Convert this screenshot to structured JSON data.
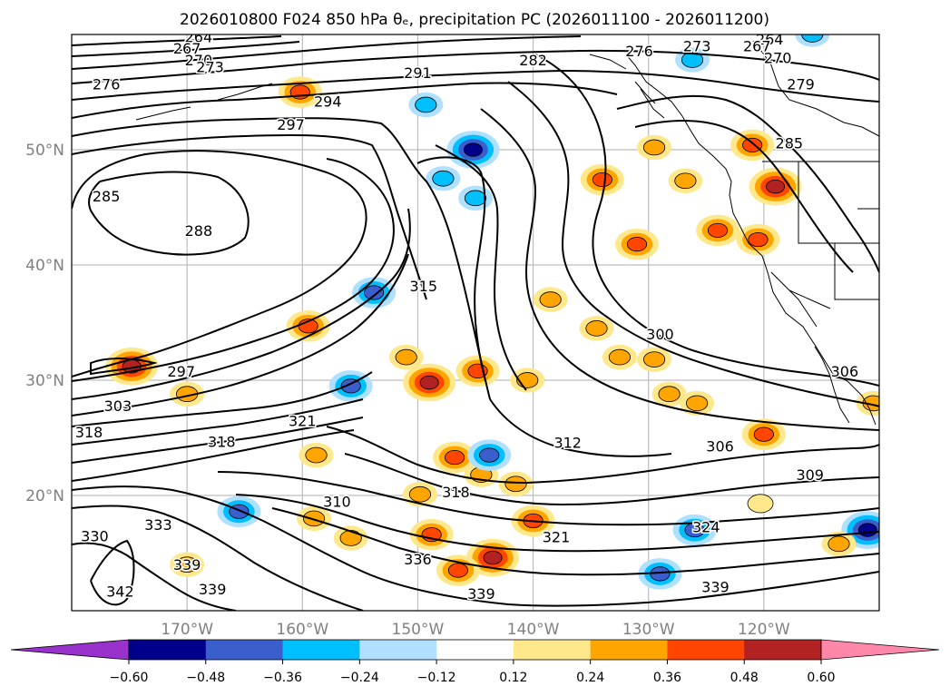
{
  "chart_data": {
    "type": "contour_map",
    "title": "2026010800 F024 850 hPa θₑ, precipitation PC (2026011100 - 2026011200)",
    "xlim": [
      -180,
      -110
    ],
    "ylim": [
      10,
      60
    ],
    "x_ticks": [
      -170,
      -160,
      -150,
      -140,
      -130,
      -120
    ],
    "x_tick_labels": [
      "170°W",
      "160°W",
      "150°W",
      "140°W",
      "130°W",
      "120°W"
    ],
    "y_ticks": [
      20,
      30,
      40,
      50
    ],
    "y_tick_labels": [
      "20°N",
      "30°N",
      "40°N",
      "50°N"
    ],
    "contour_variable": "850 hPa equivalent potential temperature (K)",
    "contour_labels": [
      {
        "text": "264",
        "lon": -169.0,
        "lat": 59.8
      },
      {
        "text": "267",
        "lon": -170.0,
        "lat": 58.8
      },
      {
        "text": "270",
        "lon": -169.0,
        "lat": 57.8
      },
      {
        "text": "273",
        "lon": -168.0,
        "lat": 57.2
      },
      {
        "text": "276",
        "lon": -177.0,
        "lat": 55.7
      },
      {
        "text": "297",
        "lon": -161.0,
        "lat": 52.2
      },
      {
        "text": "294",
        "lon": -157.8,
        "lat": 54.2
      },
      {
        "text": "291",
        "lon": -150.0,
        "lat": 56.7
      },
      {
        "text": "282",
        "lon": -140.0,
        "lat": 57.8
      },
      {
        "text": "276",
        "lon": -130.8,
        "lat": 58.6
      },
      {
        "text": "273",
        "lon": -125.8,
        "lat": 59.0
      },
      {
        "text": "264",
        "lon": -119.5,
        "lat": 59.6
      },
      {
        "text": "267",
        "lon": -120.6,
        "lat": 59.0
      },
      {
        "text": "270",
        "lon": -118.8,
        "lat": 58.0
      },
      {
        "text": "279",
        "lon": -116.8,
        "lat": 55.7
      },
      {
        "text": "285",
        "lon": -117.8,
        "lat": 50.6
      },
      {
        "text": "285",
        "lon": -177.0,
        "lat": 46.0
      },
      {
        "text": "288",
        "lon": -169.0,
        "lat": 43.0
      },
      {
        "text": "297",
        "lon": -170.5,
        "lat": 30.8
      },
      {
        "text": "303",
        "lon": -176.0,
        "lat": 27.8
      },
      {
        "text": "318",
        "lon": -178.5,
        "lat": 25.5
      },
      {
        "text": "318",
        "lon": -167.0,
        "lat": 24.7
      },
      {
        "text": "321",
        "lon": -160.0,
        "lat": 26.5
      },
      {
        "text": "315",
        "lon": -149.5,
        "lat": 38.2
      },
      {
        "text": "300",
        "lon": -129.0,
        "lat": 34.0
      },
      {
        "text": "306",
        "lon": -113.0,
        "lat": 30.8
      },
      {
        "text": "312",
        "lon": -137.0,
        "lat": 24.6
      },
      {
        "text": "306",
        "lon": -123.8,
        "lat": 24.3
      },
      {
        "text": "309",
        "lon": -116.0,
        "lat": 21.8
      },
      {
        "text": "318",
        "lon": -146.7,
        "lat": 20.3
      },
      {
        "text": "324",
        "lon": -125.0,
        "lat": 17.3
      },
      {
        "text": "321",
        "lon": -138.0,
        "lat": 16.4
      },
      {
        "text": "310",
        "lon": -157.0,
        "lat": 19.5
      },
      {
        "text": "333",
        "lon": -172.5,
        "lat": 17.5
      },
      {
        "text": "330",
        "lon": -178.0,
        "lat": 16.5
      },
      {
        "text": "336",
        "lon": -150.0,
        "lat": 14.5
      },
      {
        "text": "339",
        "lon": -170.0,
        "lat": 14.0
      },
      {
        "text": "339",
        "lon": -167.8,
        "lat": 11.9
      },
      {
        "text": "342",
        "lon": -175.8,
        "lat": 11.7
      },
      {
        "text": "339",
        "lon": -144.5,
        "lat": 11.5
      },
      {
        "text": "339",
        "lon": -124.2,
        "lat": 12.1
      }
    ],
    "precip_pc_regions": [
      {
        "lon": -160.2,
        "lat": 55.0,
        "value": 0.36
      },
      {
        "lon": -145.2,
        "lat": 50.0,
        "value": -0.48
      },
      {
        "lon": -147.8,
        "lat": 47.5,
        "value": -0.24
      },
      {
        "lon": -145.0,
        "lat": 45.8,
        "value": -0.24
      },
      {
        "lon": -149.3,
        "lat": 53.9,
        "value": -0.24
      },
      {
        "lon": -134.0,
        "lat": 47.4,
        "value": 0.36
      },
      {
        "lon": -129.5,
        "lat": 50.2,
        "value": 0.24
      },
      {
        "lon": -121.0,
        "lat": 50.4,
        "value": 0.36
      },
      {
        "lon": -119.0,
        "lat": 46.8,
        "value": 0.48
      },
      {
        "lon": -124.0,
        "lat": 43.0,
        "value": 0.36
      },
      {
        "lon": -120.5,
        "lat": 42.2,
        "value": 0.36
      },
      {
        "lon": -131.0,
        "lat": 41.8,
        "value": 0.36
      },
      {
        "lon": -126.2,
        "lat": 57.8,
        "value": -0.24
      },
      {
        "lon": -115.8,
        "lat": 60.0,
        "value": -0.24
      },
      {
        "lon": -126.8,
        "lat": 47.3,
        "value": 0.24
      },
      {
        "lon": -138.5,
        "lat": 37.0,
        "value": 0.24
      },
      {
        "lon": -153.8,
        "lat": 37.6,
        "value": -0.36
      },
      {
        "lon": -159.5,
        "lat": 34.7,
        "value": 0.36
      },
      {
        "lon": -174.8,
        "lat": 31.2,
        "value": 0.48
      },
      {
        "lon": -170.0,
        "lat": 28.8,
        "value": 0.24
      },
      {
        "lon": -155.8,
        "lat": 29.5,
        "value": -0.36
      },
      {
        "lon": -149.0,
        "lat": 29.8,
        "value": 0.48
      },
      {
        "lon": -151.0,
        "lat": 32.0,
        "value": 0.24
      },
      {
        "lon": -134.5,
        "lat": 34.5,
        "value": 0.24
      },
      {
        "lon": -132.5,
        "lat": 32.0,
        "value": 0.24
      },
      {
        "lon": -129.5,
        "lat": 31.8,
        "value": 0.24
      },
      {
        "lon": -144.8,
        "lat": 30.8,
        "value": 0.36
      },
      {
        "lon": -140.5,
        "lat": 30.0,
        "value": 0.24
      },
      {
        "lon": -128.2,
        "lat": 28.8,
        "value": 0.24
      },
      {
        "lon": -125.8,
        "lat": 28.0,
        "value": 0.24
      },
      {
        "lon": -120.0,
        "lat": 25.3,
        "value": 0.36
      },
      {
        "lon": -110.5,
        "lat": 28.0,
        "value": 0.24
      },
      {
        "lon": -146.8,
        "lat": 23.3,
        "value": 0.36
      },
      {
        "lon": -144.5,
        "lat": 21.8,
        "value": 0.24
      },
      {
        "lon": -143.8,
        "lat": 23.5,
        "value": -0.36
      },
      {
        "lon": -141.5,
        "lat": 21.0,
        "value": 0.24
      },
      {
        "lon": -158.8,
        "lat": 23.5,
        "value": 0.24
      },
      {
        "lon": -149.8,
        "lat": 20.1,
        "value": 0.24
      },
      {
        "lon": -165.5,
        "lat": 18.6,
        "value": -0.36
      },
      {
        "lon": -159.0,
        "lat": 18.0,
        "value": 0.24
      },
      {
        "lon": -155.8,
        "lat": 16.3,
        "value": 0.24
      },
      {
        "lon": -148.8,
        "lat": 16.6,
        "value": 0.36
      },
      {
        "lon": -143.5,
        "lat": 14.6,
        "value": 0.48
      },
      {
        "lon": -146.5,
        "lat": 13.5,
        "value": 0.36
      },
      {
        "lon": -140.0,
        "lat": 17.8,
        "value": 0.36
      },
      {
        "lon": -129.0,
        "lat": 13.2,
        "value": -0.36
      },
      {
        "lon": -126.0,
        "lat": 17.0,
        "value": -0.36
      },
      {
        "lon": -111.0,
        "lat": 17.0,
        "value": -0.48
      },
      {
        "lon": -120.3,
        "lat": 19.3,
        "value": 0.12
      },
      {
        "lon": -170.0,
        "lat": 14.0,
        "value": 0.24
      },
      {
        "lon": -113.5,
        "lat": 15.8,
        "value": 0.24
      }
    ],
    "colorbar": {
      "extend": "both",
      "ticks": [
        "−0.60",
        "−0.48",
        "−0.36",
        "−0.24",
        "−0.12",
        "0.12",
        "0.24",
        "0.36",
        "0.48",
        "0.60"
      ],
      "colors": [
        "#9932cc",
        "#00008b",
        "#3a5fcd",
        "#00bfff",
        "#b0e0ff",
        "#ffffff",
        "#ffe88c",
        "#ffa500",
        "#ff4500",
        "#b22222",
        "#ff88aa"
      ]
    }
  }
}
